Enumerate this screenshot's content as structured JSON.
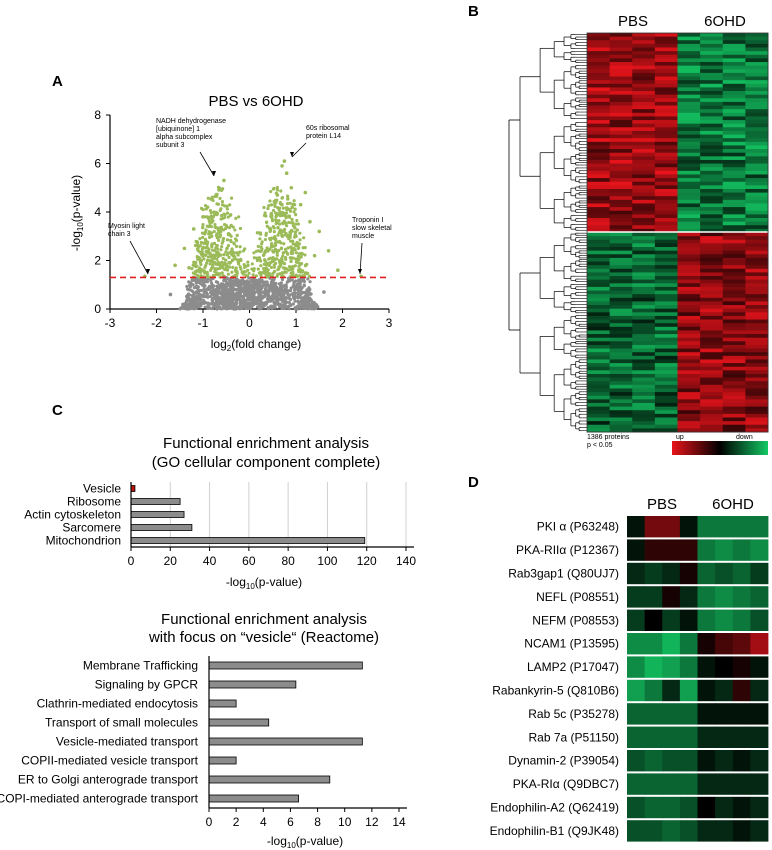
{
  "panels": {
    "a": "A",
    "b": "B",
    "c": "C",
    "d": "D"
  },
  "volcano": {
    "title": "PBS vs 6OHD",
    "xlabel_pre": "log",
    "xlabel_sub": "2",
    "xlabel_post": "(fold change)",
    "ylabel_pre": "-log",
    "ylabel_sub": "10",
    "ylabel_post": "(p-value)",
    "annotations": [
      {
        "text": "NADH dehydrogenase\n[ubiquinone] 1\nalpha subcomplex\nsubunit 3",
        "x": -0.55,
        "y": 5.3
      },
      {
        "text": "60s ribosomal\nprotein L14",
        "x": 0.75,
        "y": 6.1
      },
      {
        "text": "Myosin light\nchain 3",
        "x": -2.25,
        "y": 1.35
      },
      {
        "text": "Troponin I\nslow skeletal\nmuscle",
        "x": 2.4,
        "y": 1.35
      }
    ]
  },
  "heatmap_b": {
    "groups": [
      "PBS",
      "6OHD"
    ],
    "note_line1": "1386 proteins",
    "note_line2": "p < 0.05",
    "scale_up": "up",
    "scale_down": "down",
    "colors": {
      "up": "#e8141b",
      "mid": "#000000",
      "down": "#14c864"
    }
  },
  "enrichment1": {
    "title1": "Functional enrichment analysis",
    "title2": "(GO cellular component complete)",
    "xlabel_pre": "-log",
    "xlabel_sub": "10",
    "xlabel_post": "(p-value)"
  },
  "enrichment2": {
    "title1": "Functional enrichment analysis",
    "title2": "with focus on “vesicle“ (Reactome)",
    "xlabel_pre": "-log",
    "xlabel_sub": "10",
    "xlabel_post": "(p-value)"
  },
  "heatmap_d": {
    "groups": [
      "PBS",
      "6OHD"
    ]
  },
  "chart_data": [
    {
      "type": "scatter",
      "id": "volcano",
      "title": "PBS vs 6OHD",
      "xlabel": "log2(fold change)",
      "ylabel": "-log10(p-value)",
      "xlim": [
        -3,
        3
      ],
      "ylim": [
        0,
        8
      ],
      "xticks": [
        -3,
        -2,
        -1,
        0,
        1,
        2,
        3
      ],
      "yticks": [
        0,
        2,
        4,
        6,
        8
      ],
      "threshold": 1.3,
      "series": [
        {
          "color": "#9bbb59",
          "points": [
            [
              -0.55,
              5.3
            ],
            [
              0.75,
              6.1
            ],
            [
              -2.25,
              1.35
            ],
            [
              2.4,
              1.35
            ],
            [
              -0.8,
              4.6
            ],
            [
              -0.6,
              4.9
            ],
            [
              -1.0,
              3.8
            ],
            [
              -0.9,
              4.2
            ],
            [
              -1.2,
              3.3
            ],
            [
              -1.4,
              2.5
            ],
            [
              -0.7,
              3.9
            ],
            [
              0.6,
              4.7
            ],
            [
              0.9,
              5.0
            ],
            [
              1.1,
              4.3
            ],
            [
              1.3,
              3.6
            ],
            [
              0.8,
              5.6
            ],
            [
              0.7,
              5.9
            ],
            [
              1.5,
              3.2
            ],
            [
              1.7,
              2.4
            ],
            [
              1.2,
              4.8
            ],
            [
              -1.6,
              1.8
            ],
            [
              1.9,
              1.6
            ],
            [
              -0.45,
              3.1
            ],
            [
              0.45,
              3.3
            ],
            [
              -0.35,
              2.2
            ],
            [
              0.35,
              2.4
            ],
            [
              -0.5,
              1.8
            ],
            [
              0.5,
              2.0
            ],
            [
              1.0,
              3.0
            ],
            [
              -1.1,
              2.6
            ],
            [
              -0.9,
              2.0
            ],
            [
              0.9,
              2.1
            ],
            [
              1.4,
              2.2
            ],
            [
              -1.3,
              1.7
            ],
            [
              0.3,
              1.5
            ],
            [
              -0.3,
              1.6
            ]
          ]
        },
        {
          "color": "#8c8c8c",
          "points": [
            [
              0,
              0.2
            ],
            [
              0.1,
              0.5
            ],
            [
              -0.1,
              0.6
            ],
            [
              0.2,
              0.9
            ],
            [
              -0.2,
              0.8
            ],
            [
              0.3,
              1.1
            ],
            [
              -0.3,
              1.0
            ],
            [
              0.15,
              0.3
            ],
            [
              -0.15,
              0.35
            ],
            [
              0.05,
              1.2
            ],
            [
              -0.05,
              1.15
            ],
            [
              0.4,
              0.6
            ],
            [
              -0.4,
              0.7
            ],
            [
              0.5,
              1.0
            ],
            [
              -0.5,
              0.9
            ],
            [
              0.6,
              0.3
            ],
            [
              -0.6,
              0.4
            ],
            [
              0.8,
              0.7
            ],
            [
              -0.8,
              0.6
            ],
            [
              1.0,
              0.9
            ],
            [
              -1.0,
              1.0
            ],
            [
              1.2,
              0.5
            ],
            [
              -1.3,
              0.8
            ],
            [
              1.6,
              0.7
            ],
            [
              -1.7,
              0.6
            ]
          ]
        }
      ]
    },
    {
      "type": "heatmap",
      "id": "clustered-heatmap",
      "columns": [
        "PBS",
        "PBS",
        "PBS",
        "PBS",
        "6OHD",
        "6OHD",
        "6OHD",
        "6OHD"
      ],
      "row_count_label": "1386 proteins",
      "pvalue_label": "p < 0.05",
      "scale": {
        "low": "up",
        "high": "down"
      }
    },
    {
      "type": "bar",
      "id": "go-enrichment",
      "title": "Functional enrichment analysis (GO cellular component complete)",
      "orientation": "horizontal",
      "categories": [
        "Vesicle",
        "Ribosome",
        "Actin cytoskeleton",
        "Sarcomere",
        "Mitochondrion"
      ],
      "values": [
        2,
        25,
        27,
        31,
        119
      ],
      "highlight": [
        true,
        false,
        false,
        false,
        false
      ],
      "xlabel": "-log10(p-value)",
      "xlim": [
        0,
        140
      ],
      "xticks": [
        0,
        20,
        40,
        60,
        80,
        100,
        120,
        140
      ],
      "colors": {
        "bar": "#8c8c8c",
        "highlight": "#c0140f"
      }
    },
    {
      "type": "bar",
      "id": "reactome-enrichment",
      "title": "Functional enrichment analysis with focus on vesicle (Reactome)",
      "orientation": "horizontal",
      "categories": [
        "Membrane Trafficking",
        "Signaling by GPCR",
        "Clathrin-mediated endocytosis",
        "Transport of small molecules",
        "Vesicle-mediated transport",
        "COPII-mediated vesicle transport",
        "ER to Golgi anterograde transport",
        "COPI-mediated anterograde transport"
      ],
      "values": [
        11.3,
        6.4,
        2.0,
        4.4,
        11.3,
        2.0,
        8.9,
        6.6
      ],
      "xlabel": "-log10(p-value)",
      "xlim": [
        0,
        14
      ],
      "xticks": [
        0,
        2,
        4,
        6,
        8,
        10,
        12,
        14
      ],
      "colors": {
        "bar": "#8c8c8c"
      }
    },
    {
      "type": "heatmap",
      "id": "protein-heatmap",
      "columns": [
        "PBS",
        "PBS",
        "PBS",
        "PBS",
        "6OHD",
        "6OHD",
        "6OHD",
        "6OHD"
      ],
      "rows": [
        "PKI α (P63248)",
        "PKA-RIIα (P12367)",
        "Rab3gap1 (Q80UJ7)",
        "NEFL (P08551)",
        "NEFM (P08553)",
        "NCAM1 (P13595)",
        "LAMP2 (P17047)",
        "Rabankyrin-5 (Q810B6)",
        "Rab 5c (P35278)",
        "Rab 7a (P51150)",
        "Dynamin-2 (P39054)",
        "PKA-RIα (Q9DBC7)",
        "Endophilin-A2 (Q62419)",
        "Endophilin-B1 (Q9JK48)"
      ],
      "values": [
        [
          0.1,
          -0.5,
          -0.5,
          0.1,
          0.6,
          0.6,
          0.6,
          0.6
        ],
        [
          0.1,
          -0.2,
          -0.2,
          -0.2,
          0.6,
          0.7,
          0.6,
          0.7
        ],
        [
          0.2,
          0.3,
          0.2,
          -0.1,
          0.5,
          0.4,
          0.5,
          0.3
        ],
        [
          0.3,
          0.3,
          -0.1,
          0.2,
          0.6,
          0.7,
          0.6,
          0.5
        ],
        [
          0.3,
          0.0,
          0.3,
          0.1,
          0.6,
          0.7,
          0.6,
          0.4
        ],
        [
          0.7,
          0.7,
          0.9,
          0.6,
          -0.1,
          -0.3,
          -0.4,
          -0.7
        ],
        [
          0.7,
          0.9,
          0.8,
          0.6,
          0.1,
          0.0,
          -0.1,
          0.1
        ],
        [
          0.8,
          0.6,
          0.2,
          0.8,
          0.1,
          0.2,
          -0.2,
          0.2
        ],
        [
          0.5,
          0.5,
          0.5,
          0.5,
          0.1,
          0.1,
          0.1,
          0.1
        ],
        [
          0.5,
          0.5,
          0.5,
          0.5,
          0.2,
          0.2,
          0.2,
          0.2
        ],
        [
          0.4,
          0.5,
          0.4,
          0.4,
          0.1,
          0.2,
          0.1,
          0.2
        ],
        [
          0.5,
          0.5,
          0.5,
          0.5,
          0.2,
          0.2,
          0.2,
          0.2
        ],
        [
          0.4,
          0.5,
          0.5,
          0.4,
          0.0,
          0.2,
          0.1,
          0.2
        ],
        [
          0.4,
          0.4,
          0.5,
          0.4,
          0.2,
          0.2,
          0.1,
          0.2
        ]
      ]
    }
  ]
}
